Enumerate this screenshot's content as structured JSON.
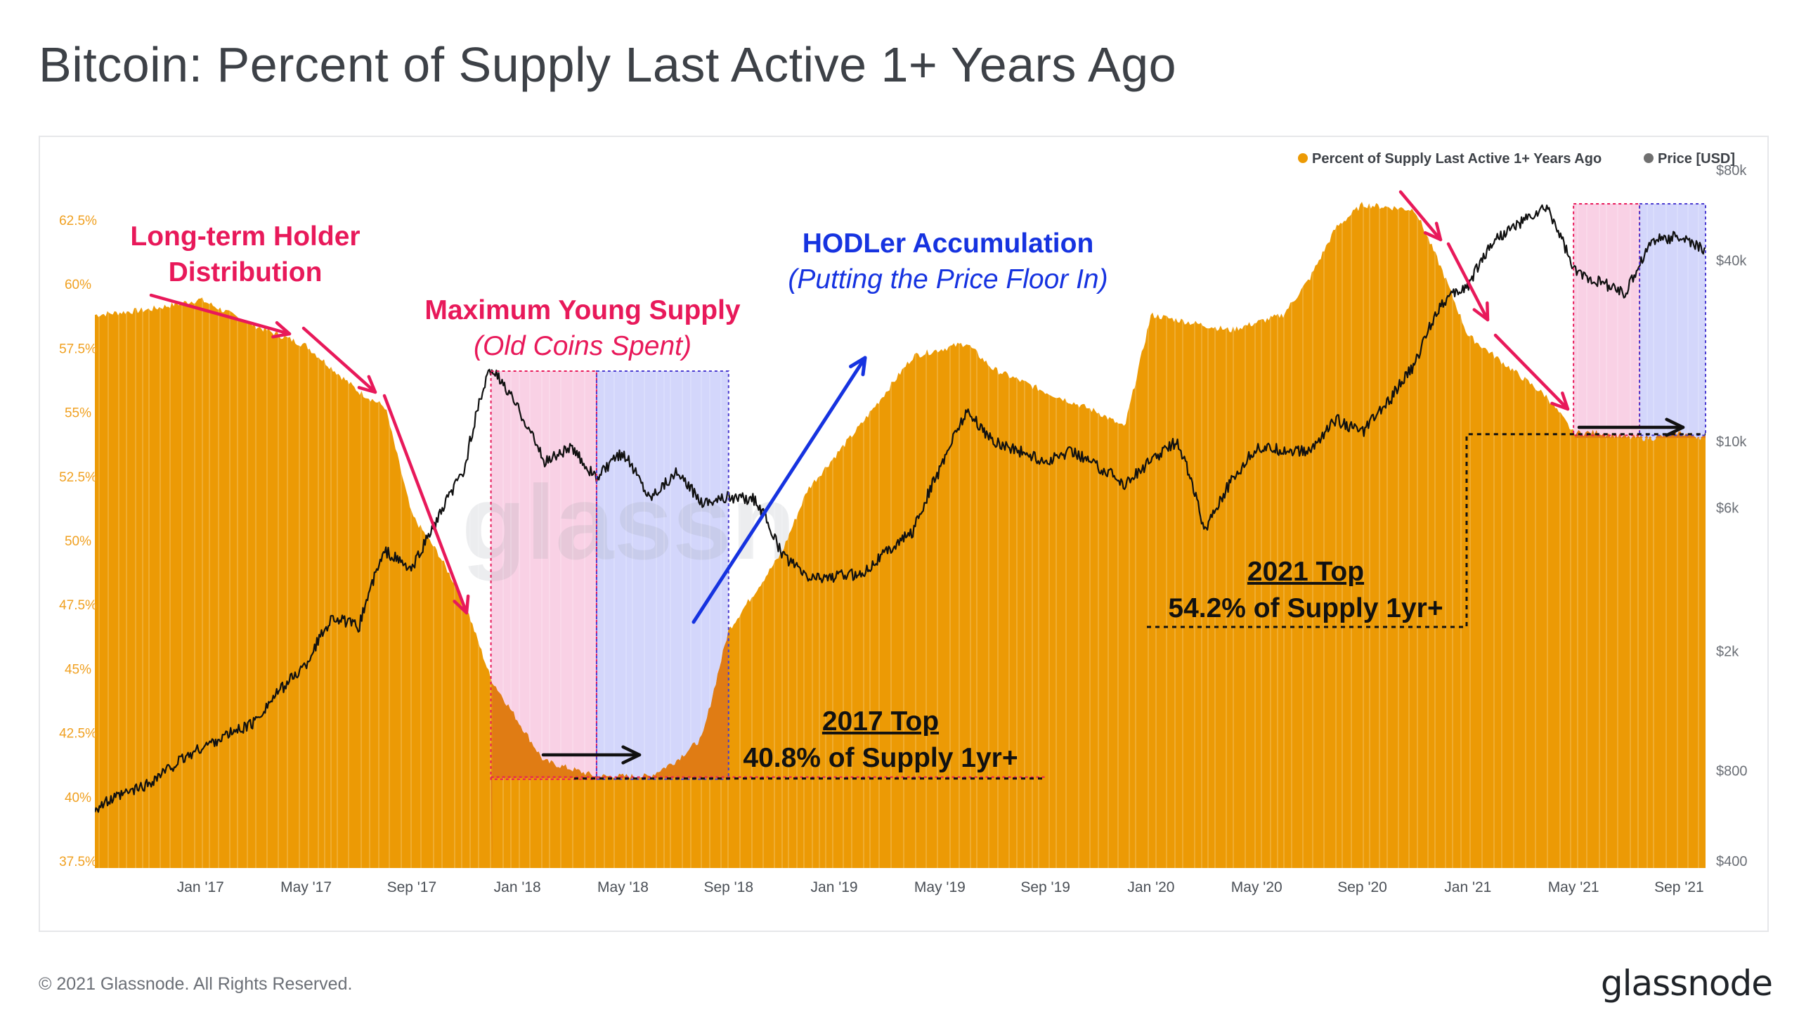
{
  "title": "Bitcoin: Percent of Supply Last Active 1+ Years Ago",
  "footer": "© 2021 Glassnode. All Rights Reserved.",
  "brand": "glassnode",
  "watermark": "glassnode",
  "colors": {
    "supply": "#ec9a05",
    "supply_highlight": "#e07c14",
    "price": "#111111",
    "pink_zone": "#f8c9e0",
    "blue_zone": "#cbcffa",
    "red_annotation": "#e8195a",
    "blue_annotation": "#1633e0",
    "black_annotation": "#111111",
    "axis_text": "#8b8f96"
  },
  "chart_data": {
    "type": "area",
    "x_tick_labels": [
      "Jan '17",
      "May '17",
      "Sep '17",
      "Jan '18",
      "May '18",
      "Sep '18",
      "Jan '19",
      "May '19",
      "Sep '19",
      "Jan '20",
      "May '20",
      "Sep '20",
      "Jan '21",
      "May '21",
      "Sep '21"
    ],
    "x_ticks": [
      "2017-01",
      "2017-05",
      "2017-09",
      "2018-01",
      "2018-05",
      "2018-09",
      "2019-01",
      "2019-05",
      "2019-09",
      "2020-01",
      "2020-05",
      "2020-09",
      "2021-01",
      "2021-05",
      "2021-09"
    ],
    "xlim": [
      "2016-09",
      "2021-10"
    ],
    "y_left_ticks": [
      "37.5%",
      "40%",
      "42.5%",
      "45%",
      "47.5%",
      "50%",
      "52.5%",
      "55%",
      "57.5%",
      "60%",
      "62.5%"
    ],
    "y_left_lim": [
      37.5,
      63.5
    ],
    "y_right_ticks": [
      "$400",
      "$800",
      "$2k",
      "$6k",
      "$10k",
      "$40k",
      "$80k"
    ],
    "y_right_values": [
      400,
      800,
      2000,
      6000,
      10000,
      40000,
      80000
    ],
    "y_right_scale": "log",
    "legend": {
      "position": "top-right",
      "items": [
        "Percent of Supply Last Active 1+ Years Ago",
        "Price [USD]"
      ]
    },
    "series": [
      {
        "name": "Percent of Supply Last Active 1+ Years Ago",
        "axis": "left",
        "points": [
          [
            "2016-09",
            58.8
          ],
          [
            "2016-11",
            59.0
          ],
          [
            "2017-01",
            59.4
          ],
          [
            "2017-03",
            58.4
          ],
          [
            "2017-05",
            57.6
          ],
          [
            "2017-07",
            55.8
          ],
          [
            "2017-08",
            55.2
          ],
          [
            "2017-09",
            51.0
          ],
          [
            "2017-10",
            49.5
          ],
          [
            "2017-11",
            47.6
          ],
          [
            "2017-12",
            44.6
          ],
          [
            "2018-01",
            43.0
          ],
          [
            "2018-02",
            41.4
          ],
          [
            "2018-04",
            40.8
          ],
          [
            "2018-06",
            40.8
          ],
          [
            "2018-07",
            41.4
          ],
          [
            "2018-08",
            42.3
          ],
          [
            "2018-09",
            46.5
          ],
          [
            "2018-11",
            49.5
          ],
          [
            "2018-12",
            52.0
          ],
          [
            "2019-02",
            54.5
          ],
          [
            "2019-04",
            57.2
          ],
          [
            "2019-06",
            57.7
          ],
          [
            "2019-07",
            56.7
          ],
          [
            "2019-09",
            55.8
          ],
          [
            "2019-11",
            55.0
          ],
          [
            "2019-12",
            54.4
          ],
          [
            "2020-01",
            58.8
          ],
          [
            "2020-03",
            58.4
          ],
          [
            "2020-04",
            58.2
          ],
          [
            "2020-06",
            58.8
          ],
          [
            "2020-07",
            60.2
          ],
          [
            "2020-08",
            62.2
          ],
          [
            "2020-09",
            63.1
          ],
          [
            "2020-11",
            62.9
          ],
          [
            "2020-12",
            60.6
          ],
          [
            "2021-01",
            58.0
          ],
          [
            "2021-03",
            56.4
          ],
          [
            "2021-04",
            55.6
          ],
          [
            "2021-05",
            54.2
          ],
          [
            "2021-06",
            54.2
          ],
          [
            "2021-07",
            54.0
          ],
          [
            "2021-08",
            54.0
          ],
          [
            "2021-09",
            54.2
          ],
          [
            "2021-10",
            54.0
          ]
        ]
      },
      {
        "name": "Price [USD]",
        "axis": "right",
        "points": [
          [
            "2016-09",
            600
          ],
          [
            "2016-11",
            720
          ],
          [
            "2017-01",
            950
          ],
          [
            "2017-03",
            1150
          ],
          [
            "2017-05",
            1800
          ],
          [
            "2017-06",
            2600
          ],
          [
            "2017-07",
            2400
          ],
          [
            "2017-08",
            4300
          ],
          [
            "2017-09",
            3700
          ],
          [
            "2017-10",
            5500
          ],
          [
            "2017-11",
            8000
          ],
          [
            "2017-12",
            17500
          ],
          [
            "2018-01",
            13000
          ],
          [
            "2018-02",
            8500
          ],
          [
            "2018-03",
            9500
          ],
          [
            "2018-04",
            7500
          ],
          [
            "2018-05",
            9200
          ],
          [
            "2018-06",
            6500
          ],
          [
            "2018-07",
            7800
          ],
          [
            "2018-08",
            6300
          ],
          [
            "2018-09",
            6500
          ],
          [
            "2018-10",
            6400
          ],
          [
            "2018-11",
            4200
          ],
          [
            "2018-12",
            3500
          ],
          [
            "2019-02",
            3600
          ],
          [
            "2019-04",
            5000
          ],
          [
            "2019-05",
            8000
          ],
          [
            "2019-06",
            12500
          ],
          [
            "2019-07",
            10000
          ],
          [
            "2019-09",
            8500
          ],
          [
            "2019-10",
            9300
          ],
          [
            "2019-12",
            7200
          ],
          [
            "2020-02",
            10000
          ],
          [
            "2020-03",
            5000
          ],
          [
            "2020-05",
            9500
          ],
          [
            "2020-07",
            9200
          ],
          [
            "2020-08",
            11800
          ],
          [
            "2020-09",
            10700
          ],
          [
            "2020-10",
            13500
          ],
          [
            "2020-11",
            18000
          ],
          [
            "2020-12",
            29000
          ],
          [
            "2021-01",
            33000
          ],
          [
            "2021-02",
            47000
          ],
          [
            "2021-04",
            60000
          ],
          [
            "2021-05",
            37000
          ],
          [
            "2021-06",
            34000
          ],
          [
            "2021-07",
            31000
          ],
          [
            "2021-08",
            47000
          ],
          [
            "2021-09",
            48000
          ],
          [
            "2021-10",
            43000
          ]
        ]
      }
    ]
  },
  "annotations": {
    "ltd_title": "Long-term Holder",
    "ltd_title2": "Distribution",
    "mys_title": "Maximum Young Supply",
    "mys_sub": "(Old Coins Spent)",
    "hodl_title": "HODLer Accumulation",
    "hodl_sub": "(Putting the Price Floor In)",
    "top2017_title": "2017 Top",
    "top2017_sub": "40.8% of Supply 1yr+",
    "top2021_title": "2021 Top",
    "top2021_sub": "54.2% of Supply 1yr+"
  }
}
